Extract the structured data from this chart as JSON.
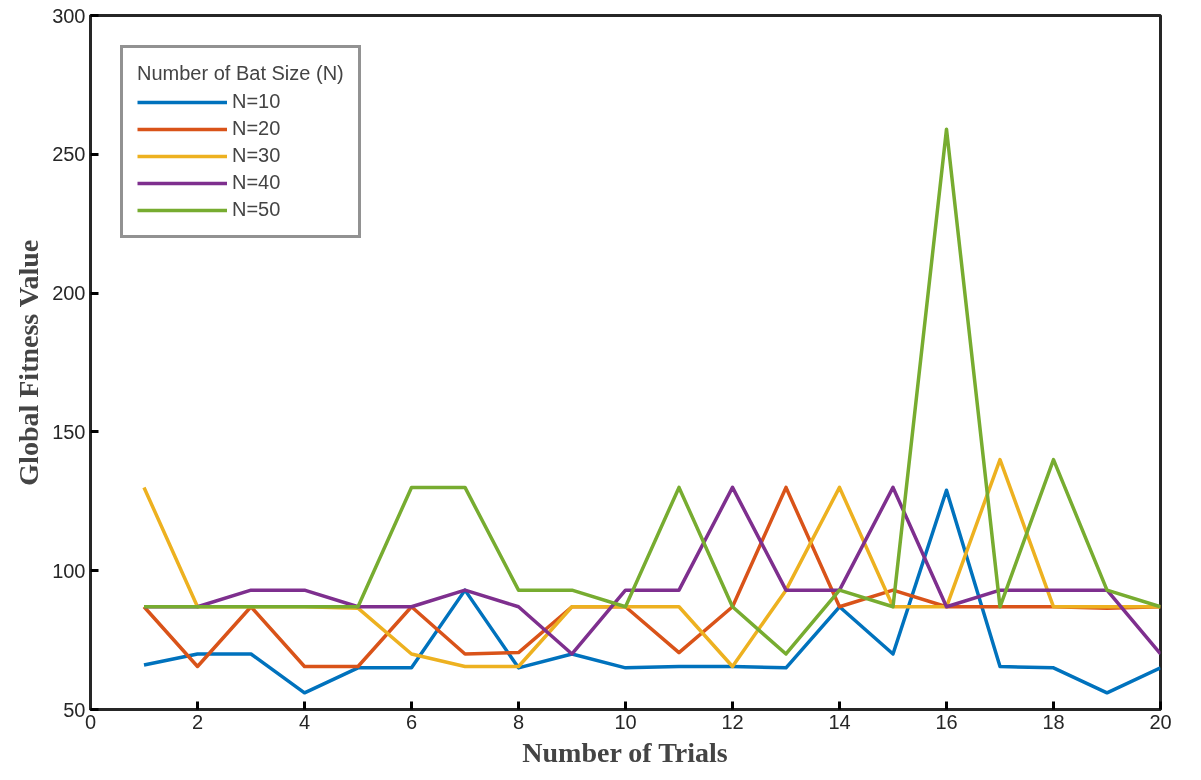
{
  "chart_data": {
    "type": "line",
    "xlabel": "Number of Trials",
    "ylabel": "Global Fitness Value",
    "legend_title": "Number of Bat Size (N)",
    "legend": "top left",
    "grid": false,
    "line_style": "solid",
    "x": [
      1,
      2,
      3,
      4,
      5,
      6,
      7,
      8,
      9,
      10,
      11,
      12,
      13,
      14,
      15,
      16,
      17,
      18,
      19,
      20
    ],
    "xlim": [
      0,
      20
    ],
    "xticks": [
      0,
      2,
      4,
      6,
      8,
      10,
      12,
      14,
      16,
      18,
      20
    ],
    "ylim": [
      50,
      300
    ],
    "yticks": [
      50,
      100,
      150,
      200,
      250,
      300
    ],
    "series": [
      {
        "name": "N=10",
        "color": "#0072bd",
        "values": [
          66,
          70,
          70,
          56,
          65,
          65,
          93,
          65,
          70,
          65,
          65.5,
          65.5,
          65,
          87,
          70,
          129,
          65.5,
          65,
          56,
          65
        ]
      },
      {
        "name": "N=20",
        "color": "#d95319",
        "values": [
          87,
          65.5,
          87,
          65.5,
          65.5,
          87,
          70,
          70.5,
          87,
          87,
          70.5,
          87,
          130,
          87,
          93,
          87,
          87,
          87,
          86.5,
          87
        ]
      },
      {
        "name": "N=30",
        "color": "#edb120",
        "values": [
          130,
          87,
          87,
          87,
          86.5,
          70,
          65.5,
          65.5,
          87,
          87,
          87,
          65.5,
          93,
          130,
          87,
          87,
          140,
          87,
          87,
          87
        ]
      },
      {
        "name": "N=40",
        "color": "#7e2f8e",
        "values": [
          87,
          87,
          93,
          93,
          87,
          87,
          93,
          87,
          70,
          93,
          93,
          130,
          93,
          93,
          130,
          87,
          93,
          93,
          93,
          70
        ]
      },
      {
        "name": "N=50",
        "color": "#77ac30",
        "values": [
          87,
          87,
          87,
          87,
          87,
          130,
          130,
          93,
          93,
          87,
          130,
          87,
          70,
          93,
          87,
          259,
          87,
          140,
          93,
          87
        ]
      }
    ]
  }
}
